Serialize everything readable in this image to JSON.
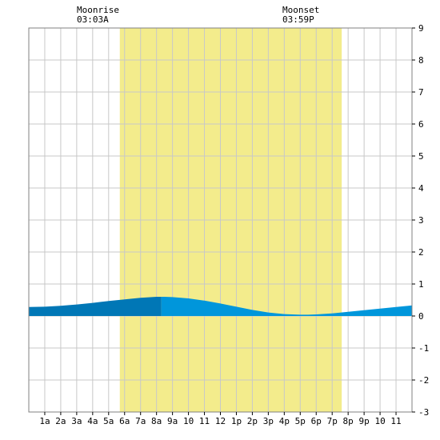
{
  "annotations": {
    "moonrise": {
      "label": "Moonrise",
      "time": "03:03A",
      "hour": 3.05
    },
    "moonset": {
      "label": "Moonset",
      "time": "03:59P",
      "hour": 15.98
    }
  },
  "chart_data": {
    "type": "area",
    "title": "",
    "xlabel": "",
    "ylabel": "",
    "x_unit": "hour of day",
    "xlim": [
      0,
      24
    ],
    "ylim": [
      -3,
      9
    ],
    "y_ticks": [
      -3,
      -2,
      -1,
      0,
      1,
      2,
      3,
      4,
      5,
      6,
      7,
      8,
      9
    ],
    "x_ticks": [
      {
        "hour": 1,
        "label": "1a"
      },
      {
        "hour": 2,
        "label": "2a"
      },
      {
        "hour": 3,
        "label": "3a"
      },
      {
        "hour": 4,
        "label": "4a"
      },
      {
        "hour": 5,
        "label": "5a"
      },
      {
        "hour": 6,
        "label": "6a"
      },
      {
        "hour": 7,
        "label": "7a"
      },
      {
        "hour": 8,
        "label": "8a"
      },
      {
        "hour": 9,
        "label": "9a"
      },
      {
        "hour": 10,
        "label": "10"
      },
      {
        "hour": 11,
        "label": "11"
      },
      {
        "hour": 12,
        "label": "12"
      },
      {
        "hour": 13,
        "label": "1p"
      },
      {
        "hour": 14,
        "label": "2p"
      },
      {
        "hour": 15,
        "label": "3p"
      },
      {
        "hour": 16,
        "label": "4p"
      },
      {
        "hour": 17,
        "label": "5p"
      },
      {
        "hour": 18,
        "label": "6p"
      },
      {
        "hour": 19,
        "label": "7p"
      },
      {
        "hour": 20,
        "label": "8p"
      },
      {
        "hour": 21,
        "label": "9p"
      },
      {
        "hour": 22,
        "label": "10"
      },
      {
        "hour": 23,
        "label": "11"
      }
    ],
    "grid": true,
    "daylight": {
      "start_hour": 5.7,
      "end_hour": 19.6
    },
    "tide_turn_hour": 8.3,
    "series": [
      {
        "x": [
          0,
          1,
          2,
          3,
          4,
          5,
          6,
          7,
          8,
          8.5,
          9,
          10,
          11,
          12,
          13,
          14,
          15,
          16,
          17,
          17.5,
          18,
          19,
          20,
          21,
          22,
          23,
          24
        ],
        "y": [
          0.28,
          0.29,
          0.32,
          0.36,
          0.41,
          0.47,
          0.52,
          0.57,
          0.6,
          0.6,
          0.59,
          0.55,
          0.48,
          0.39,
          0.29,
          0.19,
          0.11,
          0.06,
          0.04,
          0.04,
          0.05,
          0.08,
          0.13,
          0.18,
          0.23,
          0.28,
          0.33
        ]
      }
    ],
    "colors": {
      "daylight": "#f3ec8c",
      "grid": "#c8c8c8",
      "border": "#808080",
      "tide_before_turn": "#0077b6",
      "tide_after_turn": "#0096db",
      "background": "#ffffff"
    }
  }
}
